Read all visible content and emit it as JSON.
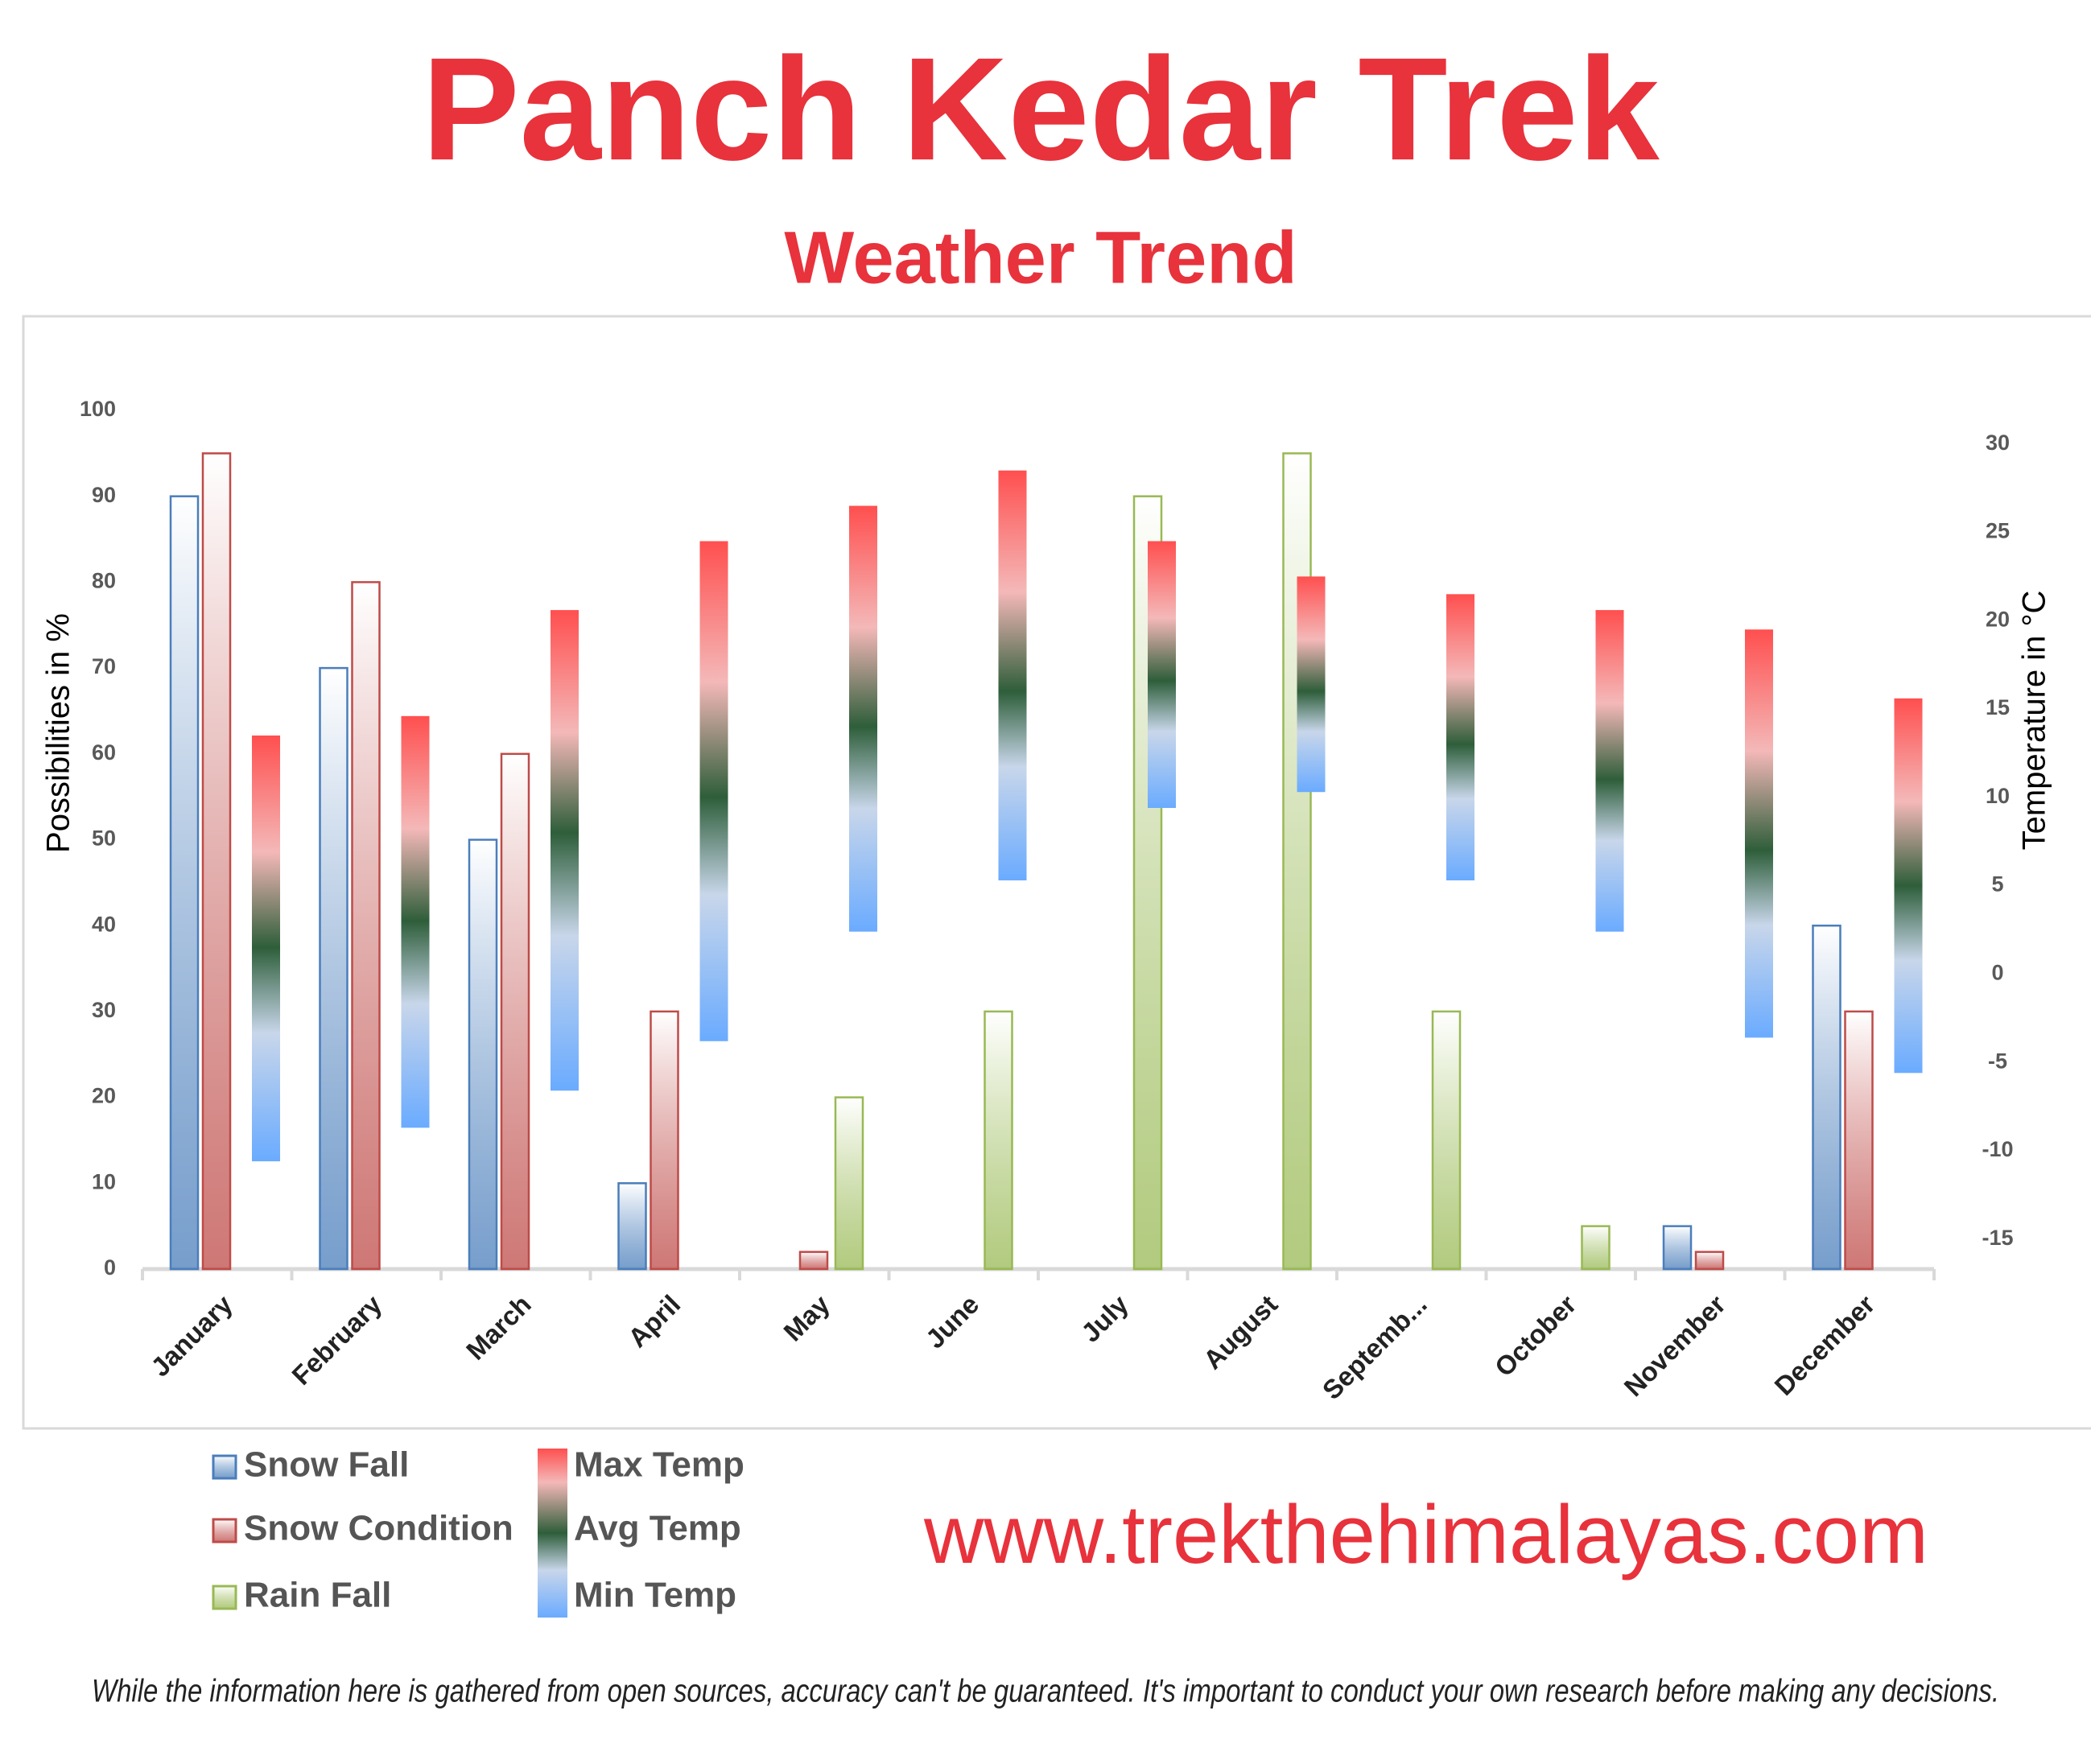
{
  "chart_data": {
    "type": "bar",
    "title": "Panch Kedar Trek",
    "subtitle": "Weather Trend",
    "ylabel": "Possibilities in %",
    "y2label": "Temperature in °C",
    "categories": [
      "January",
      "February",
      "March",
      "April",
      "May",
      "June",
      "July",
      "August",
      "Septemb...",
      "October",
      "November",
      "December"
    ],
    "series": [
      {
        "name": "Snow Fall",
        "color": "#4a7ebb",
        "axis": "y",
        "values": [
          90,
          70,
          50,
          10,
          0,
          0,
          0,
          0,
          0,
          0,
          5,
          40
        ]
      },
      {
        "name": "Snow Condition",
        "color": "#be4b48",
        "axis": "y",
        "values": [
          95,
          80,
          60,
          30,
          2,
          0,
          0,
          0,
          0,
          0,
          2,
          30
        ]
      },
      {
        "name": "Rain Fall",
        "color": "#98b954",
        "axis": "y",
        "values": [
          0,
          0,
          0,
          0,
          20,
          30,
          90,
          95,
          30,
          5,
          0,
          0
        ]
      },
      {
        "name": "Max Temp",
        "color": "#ff4f4f",
        "axis": "y2",
        "values": [
          13.5,
          14.6,
          20.6,
          24.5,
          26.5,
          28.5,
          24.5,
          22.5,
          21.5,
          20.6,
          19.5,
          15.6
        ]
      },
      {
        "name": "Avg Temp",
        "color": "#2e5e3a",
        "axis": "y2",
        "values": [
          1.5,
          3,
          8,
          10,
          14,
          16,
          16.6,
          16,
          13,
          11,
          7,
          5
        ]
      },
      {
        "name": "Min Temp",
        "color": "#6aabff",
        "axis": "y2",
        "values": [
          -10.6,
          -8.7,
          -6.6,
          -3.8,
          2.4,
          5.3,
          9.4,
          10.3,
          5.3,
          2.4,
          -3.6,
          -5.6
        ]
      }
    ],
    "ylim": [
      0,
      100
    ],
    "yticks": [
      0,
      10,
      20,
      30,
      40,
      50,
      60,
      70,
      80,
      90,
      100
    ],
    "y2lim": [
      -16.7,
      31.9
    ],
    "y2ticks": [
      -15,
      -10,
      -5,
      0,
      5,
      10,
      15,
      20,
      25,
      30
    ]
  },
  "footer": {
    "website": "www.trekthehimalayas.com",
    "disclaimer": "While the information here is gathered from open sources, accuracy can't be guaranteed. It's important to conduct your own research before making any decisions."
  }
}
